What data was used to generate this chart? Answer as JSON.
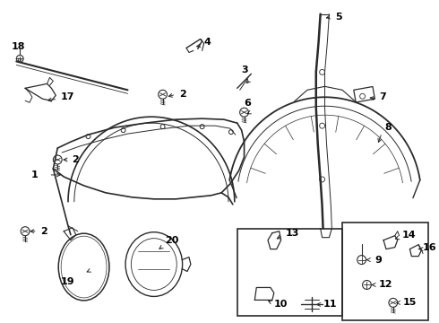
{
  "background_color": "#ffffff",
  "line_color": "#2a2a2a",
  "figsize": [
    4.9,
    3.6
  ],
  "dpi": 100,
  "label_fontsize": 8.0,
  "lw_main": 1.0
}
